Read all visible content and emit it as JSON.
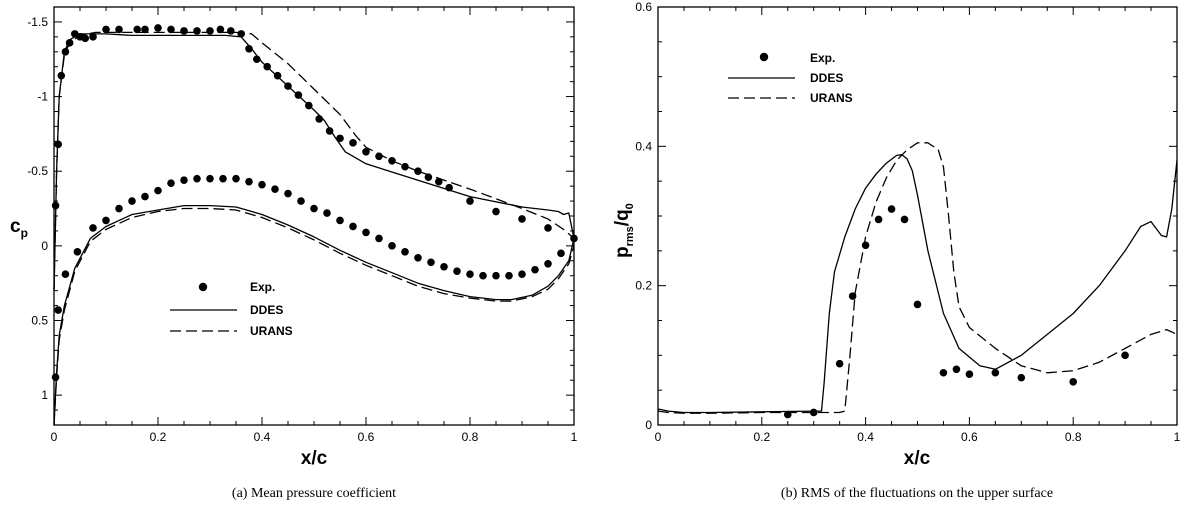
{
  "chart_data": [
    {
      "type": "line",
      "caption": "(a)  Mean pressure coefficient",
      "xlabel": "x/c",
      "ylabel_main": "c",
      "ylabel_sub": "p",
      "xlim": [
        0,
        1
      ],
      "ylim": [
        -1.6,
        1.2
      ],
      "y_inverted": true,
      "xticks": [
        "0",
        "0.2",
        "0.4",
        "0.6",
        "0.8",
        "1"
      ],
      "yticks": [
        "-1.5",
        "-1",
        "-0.5",
        "0",
        "0.5",
        "1"
      ],
      "legend_position": "lower-center",
      "series": [
        {
          "name": "Exp.",
          "style": "markers",
          "x": [
            0.003,
            0.008,
            0.014,
            0.022,
            0.03,
            0.04,
            0.05,
            0.06,
            0.075,
            0.1,
            0.125,
            0.16,
            0.175,
            0.2,
            0.225,
            0.25,
            0.275,
            0.3,
            0.32,
            0.34,
            0.36,
            0.375,
            0.39,
            0.41,
            0.43,
            0.45,
            0.47,
            0.49,
            0.51,
            0.53,
            0.55,
            0.575,
            0.6,
            0.625,
            0.65,
            0.675,
            0.7,
            0.72,
            0.74,
            0.76,
            0.8,
            0.85,
            0.9,
            0.95,
            1.0,
            0.003,
            0.008,
            0.022,
            0.045,
            0.075,
            0.1,
            0.125,
            0.15,
            0.175,
            0.2,
            0.225,
            0.25,
            0.275,
            0.3,
            0.325,
            0.35,
            0.375,
            0.4,
            0.425,
            0.45,
            0.475,
            0.5,
            0.525,
            0.55,
            0.575,
            0.6,
            0.625,
            0.65,
            0.675,
            0.7,
            0.725,
            0.75,
            0.775,
            0.8,
            0.825,
            0.85,
            0.875,
            0.9,
            0.925,
            0.95,
            0.975
          ],
          "y": [
            -0.27,
            -0.68,
            -1.14,
            -1.3,
            -1.36,
            -1.42,
            -1.4,
            -1.39,
            -1.4,
            -1.45,
            -1.45,
            -1.45,
            -1.45,
            -1.46,
            -1.45,
            -1.44,
            -1.44,
            -1.44,
            -1.45,
            -1.44,
            -1.42,
            -1.32,
            -1.25,
            -1.2,
            -1.14,
            -1.07,
            -1.01,
            -0.94,
            -0.85,
            -0.77,
            -0.72,
            -0.69,
            -0.63,
            -0.6,
            -0.57,
            -0.53,
            -0.5,
            -0.46,
            -0.43,
            -0.39,
            -0.3,
            -0.23,
            -0.18,
            -0.12,
            -0.05,
            0.88,
            0.43,
            0.19,
            0.04,
            -0.12,
            -0.17,
            -0.25,
            -0.3,
            -0.33,
            -0.37,
            -0.42,
            -0.44,
            -0.45,
            -0.45,
            -0.45,
            -0.45,
            -0.43,
            -0.41,
            -0.38,
            -0.35,
            -0.3,
            -0.25,
            -0.22,
            -0.17,
            -0.13,
            -0.09,
            -0.05,
            0.0,
            0.04,
            0.08,
            0.11,
            0.14,
            0.17,
            0.19,
            0.2,
            0.2,
            0.2,
            0.19,
            0.16,
            0.12,
            0.05
          ]
        },
        {
          "name": "DDES",
          "style": "solid",
          "x": [
            0,
            0.005,
            0.01,
            0.02,
            0.03,
            0.05,
            0.08,
            0.1,
            0.15,
            0.2,
            0.25,
            0.3,
            0.33,
            0.36,
            0.38,
            0.4,
            0.45,
            0.5,
            0.52,
            0.54,
            0.56,
            0.6,
            0.7,
            0.8,
            0.9,
            0.95,
            0.97,
            0.98,
            0.99,
            1.0
          ],
          "y": [
            0.3,
            -0.5,
            -1.0,
            -1.3,
            -1.38,
            -1.42,
            -1.42,
            -1.42,
            -1.41,
            -1.41,
            -1.41,
            -1.41,
            -1.41,
            -1.4,
            -1.32,
            -1.23,
            -1.07,
            -0.91,
            -0.84,
            -0.73,
            -0.63,
            -0.55,
            -0.44,
            -0.33,
            -0.26,
            -0.24,
            -0.23,
            -0.21,
            -0.22,
            -0.05
          ]
        },
        {
          "name": "DDES",
          "style": "solid",
          "x": [
            0,
            0.005,
            0.01,
            0.02,
            0.04,
            0.07,
            0.1,
            0.15,
            0.2,
            0.25,
            0.3,
            0.35,
            0.4,
            0.45,
            0.5,
            0.55,
            0.6,
            0.65,
            0.7,
            0.75,
            0.8,
            0.85,
            0.88,
            0.92,
            0.95,
            0.97,
            0.99,
            1.0
          ],
          "y": [
            1.2,
            0.85,
            0.6,
            0.4,
            0.15,
            -0.05,
            -0.13,
            -0.21,
            -0.24,
            -0.27,
            -0.27,
            -0.26,
            -0.21,
            -0.14,
            -0.06,
            0.03,
            0.11,
            0.18,
            0.25,
            0.3,
            0.34,
            0.36,
            0.36,
            0.33,
            0.27,
            0.2,
            0.1,
            -0.05
          ]
        },
        {
          "name": "URANS",
          "style": "dashed",
          "x": [
            0,
            0.005,
            0.01,
            0.02,
            0.03,
            0.05,
            0.08,
            0.1,
            0.15,
            0.2,
            0.25,
            0.3,
            0.35,
            0.38,
            0.4,
            0.45,
            0.5,
            0.55,
            0.58,
            0.6,
            0.65,
            0.7,
            0.8,
            0.9,
            0.95,
            0.98,
            1.0
          ],
          "y": [
            0.3,
            -0.5,
            -1.0,
            -1.28,
            -1.36,
            -1.41,
            -1.43,
            -1.43,
            -1.43,
            -1.43,
            -1.43,
            -1.43,
            -1.43,
            -1.42,
            -1.36,
            -1.22,
            -1.05,
            -0.88,
            -0.74,
            -0.66,
            -0.57,
            -0.5,
            -0.38,
            -0.25,
            -0.18,
            -0.11,
            -0.05
          ]
        },
        {
          "name": "URANS",
          "style": "dashed",
          "x": [
            0,
            0.005,
            0.01,
            0.02,
            0.04,
            0.07,
            0.1,
            0.15,
            0.2,
            0.25,
            0.3,
            0.35,
            0.4,
            0.45,
            0.5,
            0.55,
            0.6,
            0.65,
            0.7,
            0.75,
            0.8,
            0.85,
            0.88,
            0.92,
            0.95,
            0.97,
            0.99,
            1.0
          ],
          "y": [
            1.2,
            0.88,
            0.63,
            0.43,
            0.17,
            -0.03,
            -0.11,
            -0.19,
            -0.23,
            -0.25,
            -0.25,
            -0.24,
            -0.19,
            -0.12,
            -0.04,
            0.05,
            0.13,
            0.2,
            0.27,
            0.32,
            0.35,
            0.37,
            0.37,
            0.34,
            0.29,
            0.22,
            0.12,
            0.0
          ]
        }
      ],
      "legend": [
        "Exp.",
        "DDES",
        "URANS"
      ]
    },
    {
      "type": "line",
      "caption": "(b)  RMS of the fluctuations on the upper surface",
      "xlabel": "x/c",
      "ylabel_parts": [
        "p",
        "rms",
        "/q",
        "0"
      ],
      "xlim": [
        0,
        1
      ],
      "ylim": [
        0,
        0.6
      ],
      "y_inverted": false,
      "xticks": [
        "0",
        "0.2",
        "0.4",
        "0.6",
        "0.8",
        "1"
      ],
      "yticks": [
        "0",
        "0.2",
        "0.4",
        "0.6"
      ],
      "legend_position": "top-left",
      "series": [
        {
          "name": "Exp.",
          "style": "markers",
          "x": [
            0.25,
            0.3,
            0.35,
            0.375,
            0.4,
            0.425,
            0.45,
            0.475,
            0.5,
            0.55,
            0.575,
            0.6,
            0.65,
            0.7,
            0.8,
            0.9
          ],
          "y": [
            0.015,
            0.018,
            0.088,
            0.185,
            0.258,
            0.295,
            0.31,
            0.295,
            0.173,
            0.075,
            0.08,
            0.073,
            0.075,
            0.068,
            0.062,
            0.1
          ]
        },
        {
          "name": "DDES",
          "style": "solid",
          "x": [
            0,
            0.02,
            0.05,
            0.1,
            0.2,
            0.3,
            0.315,
            0.32,
            0.33,
            0.34,
            0.36,
            0.38,
            0.4,
            0.42,
            0.44,
            0.46,
            0.47,
            0.48,
            0.49,
            0.5,
            0.52,
            0.55,
            0.58,
            0.62,
            0.65,
            0.7,
            0.75,
            0.8,
            0.85,
            0.9,
            0.93,
            0.95,
            0.97,
            0.98,
            0.99,
            1.0
          ],
          "y": [
            0.023,
            0.02,
            0.018,
            0.018,
            0.019,
            0.02,
            0.02,
            0.06,
            0.16,
            0.22,
            0.27,
            0.31,
            0.34,
            0.36,
            0.376,
            0.387,
            0.388,
            0.382,
            0.365,
            0.33,
            0.25,
            0.16,
            0.11,
            0.085,
            0.08,
            0.1,
            0.13,
            0.16,
            0.2,
            0.25,
            0.285,
            0.292,
            0.272,
            0.27,
            0.31,
            0.38
          ]
        },
        {
          "name": "URANS",
          "style": "dashed",
          "x": [
            0,
            0.02,
            0.05,
            0.1,
            0.2,
            0.3,
            0.35,
            0.36,
            0.37,
            0.38,
            0.4,
            0.42,
            0.44,
            0.46,
            0.48,
            0.5,
            0.52,
            0.54,
            0.55,
            0.56,
            0.57,
            0.58,
            0.6,
            0.65,
            0.7,
            0.75,
            0.8,
            0.85,
            0.9,
            0.95,
            0.98,
            1.0
          ],
          "y": [
            0.02,
            0.018,
            0.017,
            0.017,
            0.018,
            0.018,
            0.018,
            0.02,
            0.1,
            0.19,
            0.27,
            0.32,
            0.355,
            0.38,
            0.395,
            0.405,
            0.405,
            0.395,
            0.37,
            0.3,
            0.22,
            0.17,
            0.14,
            0.11,
            0.085,
            0.075,
            0.078,
            0.09,
            0.11,
            0.13,
            0.137,
            0.13
          ]
        }
      ],
      "legend": [
        "Exp.",
        "DDES",
        "URANS"
      ]
    }
  ]
}
